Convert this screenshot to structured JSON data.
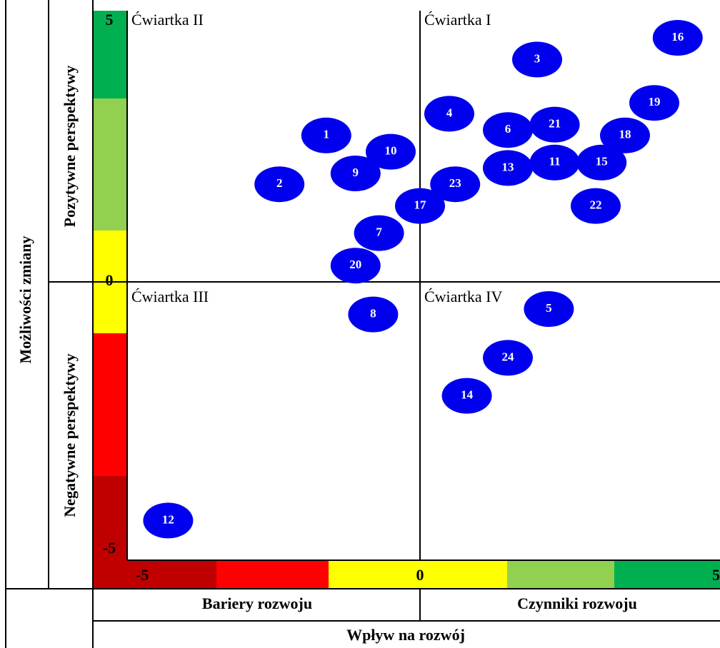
{
  "chart_data": {
    "type": "scatter",
    "y_axis_title": "Możliwości zmiany",
    "y_positive_label": "Pozytywne perspektywy",
    "y_negative_label": "Negatywne perspektywy",
    "x_negative_label": "Bariery rozwoju",
    "x_positive_label": "Czynniki rozwoju",
    "x_axis_title": "Wpływ na rozwój",
    "quadrants": [
      "Ćwiartka I",
      "Ćwiartka II",
      "Ćwiartka III",
      "Ćwiartka IV"
    ],
    "xlim": [
      -5,
      5
    ],
    "ylim": [
      -5,
      5
    ],
    "xticks": [
      -5,
      0,
      5
    ],
    "yticks": [
      -5,
      0,
      5
    ],
    "series": [
      {
        "color": "#0000ee",
        "labels": [
          "1",
          "2",
          "3",
          "4",
          "5",
          "6",
          "7",
          "8",
          "9",
          "10",
          "11",
          "12",
          "13",
          "14",
          "15",
          "16",
          "17",
          "18",
          "19",
          "20",
          "21",
          "22",
          "23",
          "24"
        ],
        "x": [
          -1.6,
          -2.4,
          2.0,
          0.5,
          2.2,
          1.5,
          -0.7,
          -0.8,
          -1.1,
          -0.5,
          2.3,
          -4.3,
          1.5,
          0.8,
          3.1,
          4.4,
          0.0,
          3.5,
          4.0,
          -1.1,
          2.3,
          3.0,
          0.6,
          1.5
        ],
        "values": [
          2.7,
          1.8,
          4.1,
          3.1,
          -0.5,
          2.8,
          0.9,
          -0.6,
          2.0,
          2.4,
          2.2,
          -4.4,
          2.1,
          -2.1,
          2.2,
          4.5,
          1.4,
          2.7,
          3.3,
          0.3,
          2.9,
          1.4,
          1.8,
          -1.4
        ]
      }
    ]
  }
}
